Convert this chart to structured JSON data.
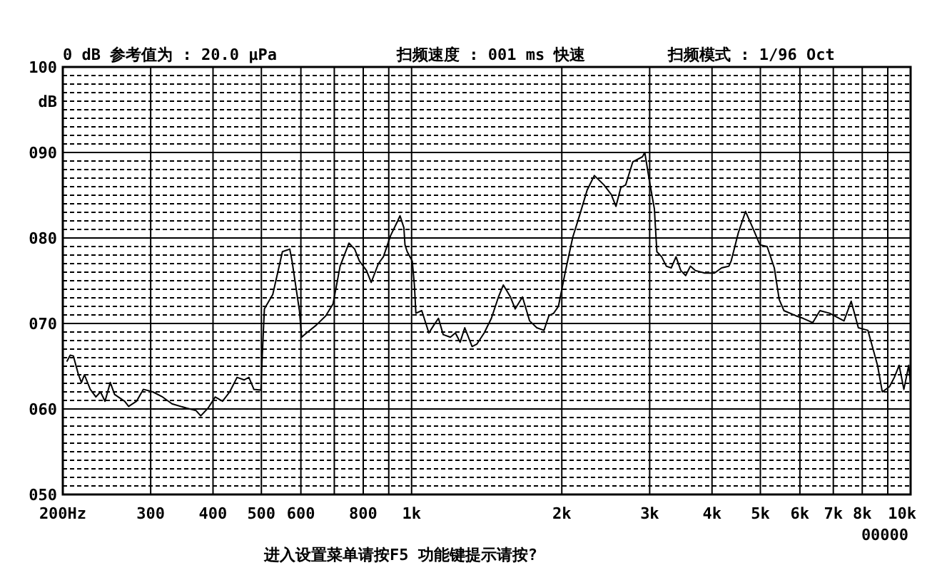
{
  "chart_data": {
    "type": "line",
    "title": "0 dB 参考值为 : 20.0 μPa",
    "subtitle": "扫频速度 : 001 ms 快速",
    "ylabel": "dB",
    "annotations": [
      "扫频模式 : 1/96 Oct",
      "进入设置菜单请按F5  功能键提示请按?",
      "00000"
    ],
    "log": "x",
    "grid": true,
    "line_style": "solid",
    "xlim": [
      200,
      10000
    ],
    "ylim": [
      50,
      100
    ],
    "xticks": [
      {
        "value": 200,
        "label": "200Hz"
      },
      300,
      400,
      500,
      600,
      {
        "value": 700,
        "label": null
      },
      800,
      {
        "value": 900,
        "label": null
      },
      {
        "value": 1000,
        "label": "1k"
      },
      {
        "value": 2000,
        "label": "2k"
      },
      {
        "value": 3000,
        "label": "3k"
      },
      {
        "value": 4000,
        "label": "4k"
      },
      {
        "value": 5000,
        "label": "5k"
      },
      {
        "value": 6000,
        "label": "6k"
      },
      {
        "value": 7000,
        "label": "7k"
      },
      {
        "value": 8000,
        "label": "8k"
      },
      {
        "value": 9000,
        "label": null
      },
      {
        "value": 10000,
        "label": "10k"
      }
    ],
    "yticks": [
      {
        "value": 50,
        "label": "050"
      },
      {
        "value": 51,
        "label": null
      },
      {
        "value": 52,
        "label": null
      },
      {
        "value": 53,
        "label": null
      },
      {
        "value": 54,
        "label": null
      },
      {
        "value": 55,
        "label": null
      },
      {
        "value": 56,
        "label": null
      },
      {
        "value": 57,
        "label": null
      },
      {
        "value": 58,
        "label": null
      },
      {
        "value": 59,
        "label": null
      },
      {
        "value": 60,
        "label": "060"
      },
      {
        "value": 61,
        "label": null
      },
      {
        "value": 62,
        "label": null
      },
      {
        "value": 63,
        "label": null
      },
      {
        "value": 64,
        "label": null
      },
      {
        "value": 65,
        "label": null
      },
      {
        "value": 66,
        "label": null
      },
      {
        "value": 67,
        "label": null
      },
      {
        "value": 68,
        "label": null
      },
      {
        "value": 69,
        "label": null
      },
      {
        "value": 70,
        "label": "070"
      },
      {
        "value": 71,
        "label": null
      },
      {
        "value": 72,
        "label": null
      },
      {
        "value": 73,
        "label": null
      },
      {
        "value": 74,
        "label": null
      },
      {
        "value": 75,
        "label": null
      },
      {
        "value": 76,
        "label": null
      },
      {
        "value": 77,
        "label": null
      },
      {
        "value": 78,
        "label": null
      },
      {
        "value": 79,
        "label": null
      },
      {
        "value": 80,
        "label": "080"
      },
      {
        "value": 81,
        "label": null
      },
      {
        "value": 82,
        "label": null
      },
      {
        "value": 83,
        "label": null
      },
      {
        "value": 84,
        "label": null
      },
      {
        "value": 85,
        "label": null
      },
      {
        "value": 86,
        "label": null
      },
      {
        "value": 87,
        "label": null
      },
      {
        "value": 88,
        "label": null
      },
      {
        "value": 89,
        "label": null
      },
      {
        "value": 90,
        "label": "090"
      },
      {
        "value": 91,
        "label": null
      },
      {
        "value": 92,
        "label": null
      },
      {
        "value": 93,
        "label": null
      },
      {
        "value": 94,
        "label": null
      },
      {
        "value": 95,
        "label": null
      },
      {
        "value": 96,
        "label": null
      },
      {
        "value": 97,
        "label": null
      },
      {
        "value": 98,
        "label": null
      },
      {
        "value": 99,
        "label": null
      },
      {
        "value": 100,
        "label": "100"
      }
    ],
    "x": [
      204,
      207,
      210,
      215,
      218,
      221,
      227,
      233,
      238,
      243,
      249,
      254,
      266,
      271,
      281,
      290,
      303,
      317,
      331,
      354,
      370,
      378,
      391,
      404,
      418,
      432,
      447,
      462,
      472,
      483,
      499,
      502,
      507,
      527,
      551,
      570,
      576,
      596,
      602,
      616,
      644,
      673,
      696,
      719,
      749,
      769,
      786,
      812,
      830,
      858,
      878,
      908,
      938,
      948,
      965,
      970,
      980,
      1003,
      1013,
      1020,
      1048,
      1083,
      1108,
      1132,
      1157,
      1196,
      1224,
      1251,
      1278,
      1322,
      1352,
      1398,
      1445,
      1493,
      1527,
      1578,
      1613,
      1668,
      1724,
      1782,
      1842,
      1884,
      1926,
      1969,
      2035,
      2104,
      2175,
      2248,
      2324,
      2430,
      2512,
      2568,
      2626,
      2685,
      2775,
      2902,
      2933,
      3000,
      3066,
      3101,
      3170,
      3240,
      3314,
      3388,
      3463,
      3542,
      3620,
      3701,
      3869,
      4045,
      4181,
      4323,
      4369,
      4516,
      4669,
      4826,
      4989,
      5158,
      5332,
      5454,
      5575,
      5891,
      6090,
      6367,
      6582,
      6881,
      7354,
      7602,
      7858,
      8211,
      8585,
      8775,
      9071,
      9278,
      9484,
      9694,
      9915,
      10000
    ],
    "series": [
      {
        "color": "#000000",
        "values": [
          65.6,
          66.3,
          66.2,
          64.0,
          63.1,
          64.0,
          62.3,
          61.4,
          62.0,
          60.9,
          63.1,
          61.7,
          60.9,
          60.3,
          60.9,
          62.3,
          62.0,
          61.4,
          60.6,
          60.1,
          59.8,
          59.2,
          60.1,
          61.4,
          60.9,
          62.0,
          63.7,
          63.4,
          63.7,
          62.3,
          62.2,
          66.2,
          71.7,
          73.4,
          78.4,
          78.7,
          77.3,
          71.5,
          68.4,
          68.9,
          69.8,
          70.9,
          72.3,
          76.7,
          79.4,
          78.7,
          77.3,
          76.2,
          74.8,
          77.0,
          77.8,
          80.3,
          82.0,
          82.6,
          81.2,
          79.2,
          78.4,
          77.3,
          74.5,
          71.2,
          71.5,
          68.9,
          69.8,
          70.6,
          68.7,
          68.4,
          68.9,
          67.8,
          69.5,
          67.3,
          67.6,
          68.9,
          70.6,
          73.1,
          74.5,
          73.1,
          71.7,
          73.1,
          70.3,
          69.5,
          69.2,
          70.9,
          71.2,
          72.0,
          76.2,
          80.1,
          82.8,
          85.6,
          87.3,
          86.2,
          85.1,
          83.7,
          85.9,
          86.2,
          88.9,
          89.5,
          90.0,
          86.5,
          83.4,
          78.4,
          77.8,
          76.7,
          76.5,
          77.8,
          76.2,
          75.6,
          76.7,
          76.2,
          75.9,
          75.9,
          76.5,
          76.7,
          77.3,
          80.6,
          83.1,
          81.2,
          79.2,
          79.0,
          76.5,
          72.8,
          71.5,
          70.9,
          70.6,
          70.1,
          71.5,
          71.2,
          70.3,
          72.6,
          69.5,
          69.2,
          65.1,
          62.0,
          62.6,
          63.7,
          65.1,
          62.3,
          65.1,
          62.8
        ]
      }
    ]
  }
}
